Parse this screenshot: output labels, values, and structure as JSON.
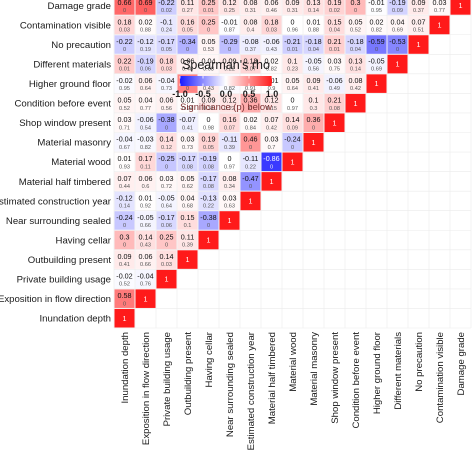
{
  "chart_data": {
    "type": "heatmap",
    "title": "",
    "variables": [
      "Inundation depth",
      "Exposition in flow direction",
      "Private building usage",
      "Outbuilding present",
      "Having cellar",
      "Near surrounding sealed",
      "Estimated construction year",
      "Material half timbered",
      "Material wood",
      "Material masonry",
      "Shop window present",
      "Condition before event",
      "Higher ground floor",
      "Different materials",
      "No precaution",
      "Contamination visible",
      "Damage grade"
    ],
    "rho": [
      [
        1
      ],
      [
        0.58,
        1
      ],
      [
        -0.02,
        -0.04,
        1
      ],
      [
        0.09,
        0.06,
        0.14,
        1
      ],
      [
        0.3,
        0.14,
        0.25,
        0.11,
        1
      ],
      [
        -0.24,
        -0.05,
        -0.17,
        0.15,
        -0.38,
        1
      ],
      [
        -0.12,
        0.01,
        -0.05,
        0.04,
        -0.13,
        0.03,
        1
      ],
      [
        0.07,
        0.06,
        0.03,
        0.05,
        -0.17,
        0.08,
        -0.47,
        1
      ],
      [
        0.01,
        0.17,
        -0.25,
        -0.17,
        -0.19,
        0,
        -0.11,
        -0.86,
        1
      ],
      [
        -0.04,
        -0.03,
        0.14,
        0.03,
        0.19,
        -0.11,
        0.46,
        0.03,
        -0.24,
        1
      ],
      [
        0.03,
        -0.06,
        -0.38,
        -0.07,
        0,
        0.16,
        0.02,
        0.07,
        0.14,
        0.36,
        1
      ],
      [
        0.05,
        0.04,
        0.06,
        0.01,
        0.09,
        0.12,
        0.36,
        0.12,
        0,
        0.1,
        0.21,
        1
      ],
      [
        -0.02,
        0.06,
        -0.04,
        0.54,
        0.08,
        -0.02,
        0.01,
        0.01,
        0.05,
        0.09,
        -0.06,
        0.08,
        1
      ],
      [
        0.22,
        -0.19,
        0.18,
        0.06,
        0.04,
        0.09,
        0.18,
        0.02,
        0.1,
        -0.05,
        0.03,
        0.13,
        -0.05,
        1
      ],
      [
        -0.22,
        -0.12,
        -0.17,
        -0.34,
        0.05,
        -0.29,
        -0.08,
        -0.06,
        -0.21,
        -0.18,
        0.21,
        -0.18,
        -0.59,
        -0.53,
        1
      ],
      [
        0.18,
        0.02,
        -0.1,
        0.16,
        0.25,
        -0.01,
        0.08,
        0.18,
        0,
        0.01,
        0.15,
        0.05,
        0.02,
        0.04,
        0.07,
        1
      ],
      [
        0.66,
        0.69,
        -0.22,
        0.11,
        0.25,
        0.12,
        0.08,
        0.06,
        0.09,
        0.13,
        0.19,
        0.3,
        -0.01,
        -0.19,
        0.09,
        0.03,
        1
      ]
    ],
    "p": [
      [
        null
      ],
      [
        0,
        null
      ],
      [
        0.52,
        0.76,
        null
      ],
      [
        0.41,
        0.66,
        0.03,
        null
      ],
      [
        0,
        0.43,
        0,
        0.39,
        null
      ],
      [
        0,
        0.66,
        0.06,
        0.1,
        0,
        null
      ],
      [
        0.14,
        0.92,
        0.64,
        0.68,
        0.22,
        0.63,
        null
      ],
      [
        0.44,
        0.6,
        0.72,
        0.62,
        0.08,
        0.34,
        0,
        null
      ],
      [
        0.93,
        0.11,
        0,
        0.08,
        0.08,
        0.97,
        0.22,
        0,
        null
      ],
      [
        0.67,
        0.82,
        0.12,
        0.73,
        0.05,
        0.39,
        0,
        0.7,
        0,
        null
      ],
      [
        0.71,
        0.54,
        0,
        0.41,
        0.98,
        0.07,
        0.84,
        0.42,
        0.09,
        0,
        null
      ],
      [
        0.52,
        0.77,
        0.56,
        0.94,
        0.31,
        0.22,
        0,
        0.15,
        0.97,
        0.3,
        0.08,
        null
      ],
      [
        0.95,
        0.64,
        0.73,
        0,
        0.43,
        0.82,
        0.91,
        0.9,
        0.64,
        0.41,
        0.49,
        0.42,
        null
      ],
      [
        0.01,
        0.06,
        0.03,
        0.48,
        0.68,
        0.22,
        0.07,
        0.82,
        0.23,
        0.56,
        0.75,
        0.14,
        0.69,
        null
      ],
      [
        0,
        0.19,
        0.05,
        0,
        0.53,
        0,
        0.37,
        0.43,
        0.01,
        0.04,
        0.01,
        0.04,
        0,
        0,
        null
      ],
      [
        0.03,
        0.88,
        0.24,
        0.05,
        0,
        0.87,
        0.4,
        0.03,
        0.96,
        0.88,
        0.04,
        0.52,
        0.82,
        0.69,
        0.51,
        null
      ],
      [
        0,
        0,
        0.02,
        0.27,
        0.01,
        0.25,
        0.31,
        0.46,
        0.31,
        0.14,
        0.02,
        0,
        0.95,
        0.09,
        0.37,
        0.77,
        null
      ]
    ],
    "color_scale": {
      "min": -1,
      "max": 1,
      "negative_color": "#1a1aff",
      "zero_color": "#ffffff",
      "positive_color": "#ff1a1a",
      "diagonal_color": "#ff1a1a"
    },
    "grid": true,
    "legend": {
      "title": "Spearman's rho",
      "ticks": [
        "-1.0",
        "-0.5",
        "0.0",
        "0.5",
        "1.0"
      ],
      "subtitle": "Significance (p) below",
      "placement": "top-center"
    },
    "layout": "lower-triangular, first variable at bottom row and leftmost column"
  }
}
